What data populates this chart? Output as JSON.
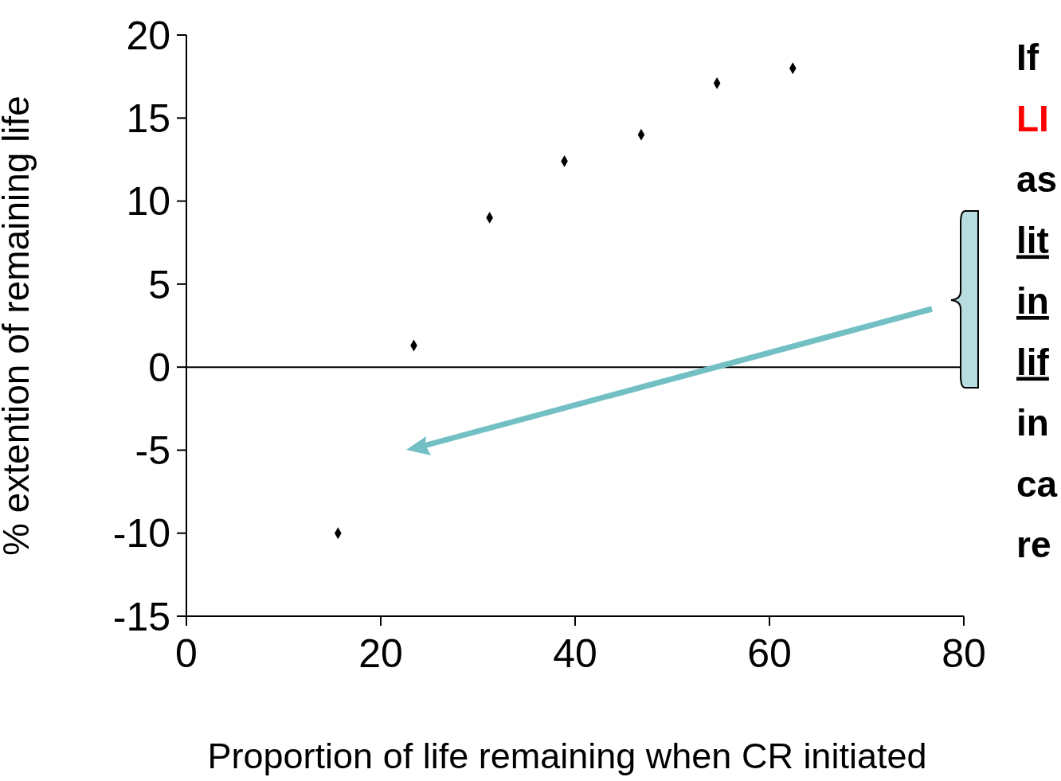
{
  "chart_data": {
    "type": "scatter",
    "xlabel": "Proportion of life remaining when CR initiated",
    "ylabel": "% extention of remaining life",
    "x": [
      15.6,
      23.4,
      31.2,
      38.9,
      46.8,
      54.6,
      62.4
    ],
    "series": [
      {
        "color": "#000000",
        "values": [
          -10,
          1.3,
          9,
          12.4,
          14,
          17.1,
          18
        ]
      }
    ],
    "xlim": [
      0,
      80
    ],
    "xticks": [
      0,
      20,
      40,
      60,
      80
    ],
    "ylim": [
      -15,
      20
    ],
    "yticks": [
      -15,
      -10,
      -5,
      0,
      5,
      10,
      15,
      20
    ],
    "ref_lines": [
      {
        "axis": "y",
        "value": 0,
        "color": "#000000",
        "line_style": "solid"
      }
    ],
    "marker": "diamond",
    "grid": false,
    "legend": false,
    "annotations": [
      "If",
      "LI",
      "as",
      "lit",
      "in",
      "lif",
      "in",
      "ca",
      "re"
    ]
  }
}
